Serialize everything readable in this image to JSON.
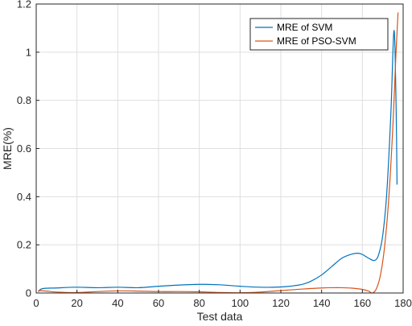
{
  "chart_data": {
    "type": "line",
    "title": "",
    "xlabel": "Test data",
    "ylabel": "MRE(%)",
    "xlim": [
      0,
      180
    ],
    "ylim": [
      0,
      1.2
    ],
    "xticks": [
      0,
      20,
      40,
      60,
      80,
      100,
      120,
      140,
      160,
      180
    ],
    "yticks": [
      0,
      0.2,
      0.4,
      0.6,
      0.8,
      1,
      1.2
    ],
    "ytick_labels": [
      "0",
      "0.2",
      "0.4",
      "0.6",
      "0.8",
      "1",
      "1.2"
    ],
    "grid": true,
    "legend_position": "top-right",
    "series": [
      {
        "name": "MRE of SVM",
        "color": "#0072BD",
        "x": [
          1,
          3,
          10,
          20,
          30,
          40,
          50,
          60,
          70,
          80,
          90,
          100,
          110,
          120,
          130,
          135,
          140,
          145,
          150,
          155,
          158,
          160,
          163,
          166,
          168,
          170,
          172,
          174,
          175.5,
          176.5,
          177
        ],
        "y": [
          0.005,
          0.018,
          0.021,
          0.024,
          0.022,
          0.024,
          0.022,
          0.028,
          0.033,
          0.036,
          0.034,
          0.028,
          0.024,
          0.025,
          0.035,
          0.05,
          0.075,
          0.11,
          0.145,
          0.162,
          0.165,
          0.16,
          0.145,
          0.135,
          0.16,
          0.24,
          0.42,
          0.75,
          1.09,
          0.8,
          0.45
        ]
      },
      {
        "name": "MRE of PSO-SVM",
        "color": "#D95319",
        "x": [
          1,
          5,
          10,
          20,
          30,
          40,
          50,
          60,
          70,
          80,
          90,
          100,
          110,
          120,
          130,
          140,
          145,
          150,
          155,
          160,
          163,
          165,
          167,
          169,
          171,
          173,
          175,
          176.5,
          177.5
        ],
        "y": [
          0.01,
          0.008,
          0.004,
          0.002,
          0.006,
          0.009,
          0.008,
          0.006,
          0.006,
          0.005,
          0.002,
          0.001,
          0.004,
          0.01,
          0.016,
          0.021,
          0.022,
          0.022,
          0.02,
          0.015,
          0.008,
          0.0,
          0.02,
          0.08,
          0.2,
          0.4,
          0.7,
          1.0,
          1.165
        ]
      }
    ]
  }
}
